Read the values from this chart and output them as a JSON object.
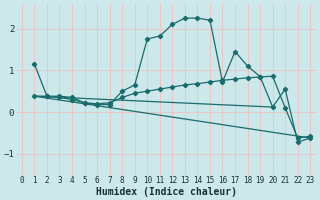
{
  "title": "",
  "xlabel": "Humidex (Indice chaleur)",
  "ylabel": "",
  "bg_color": "#cce8ea",
  "grid_color": "#e8c8c8",
  "line_color": "#1a6b6b",
  "xlim": [
    -0.5,
    23.5
  ],
  "ylim": [
    -1.5,
    2.6
  ],
  "yticks": [
    -1,
    0,
    1,
    2
  ],
  "xticks": [
    0,
    1,
    2,
    3,
    4,
    5,
    6,
    7,
    8,
    9,
    10,
    11,
    12,
    13,
    14,
    15,
    16,
    17,
    18,
    19,
    20,
    21,
    22,
    23
  ],
  "series": [
    {
      "x": [
        1,
        2,
        3,
        4,
        5,
        6,
        7,
        8,
        9,
        10,
        11,
        12,
        13,
        14,
        15,
        16,
        17,
        18,
        19,
        20,
        21,
        22,
        23
      ],
      "y": [
        1.15,
        0.38,
        0.38,
        0.35,
        0.22,
        0.18,
        0.18,
        0.5,
        0.65,
        1.75,
        1.82,
        2.1,
        2.25,
        2.25,
        2.2,
        0.72,
        1.45,
        1.1,
        0.85,
        0.12,
        0.55,
        -0.72,
        -0.62
      ],
      "has_markers": true
    },
    {
      "x": [
        1,
        2,
        3,
        4,
        5,
        6,
        7,
        8,
        9,
        10,
        11,
        12,
        13,
        14,
        15,
        16,
        17,
        18,
        19,
        20,
        21,
        22,
        23
      ],
      "y": [
        0.38,
        0.38,
        0.35,
        0.3,
        0.22,
        0.2,
        0.22,
        0.35,
        0.45,
        0.5,
        0.55,
        0.6,
        0.65,
        0.68,
        0.72,
        0.76,
        0.79,
        0.82,
        0.84,
        0.86,
        0.1,
        -0.62,
        -0.58
      ],
      "has_markers": true
    },
    {
      "x": [
        1,
        23
      ],
      "y": [
        0.38,
        -0.62
      ],
      "has_markers": false
    },
    {
      "x": [
        1,
        20
      ],
      "y": [
        0.38,
        0.12
      ],
      "has_markers": false
    }
  ]
}
